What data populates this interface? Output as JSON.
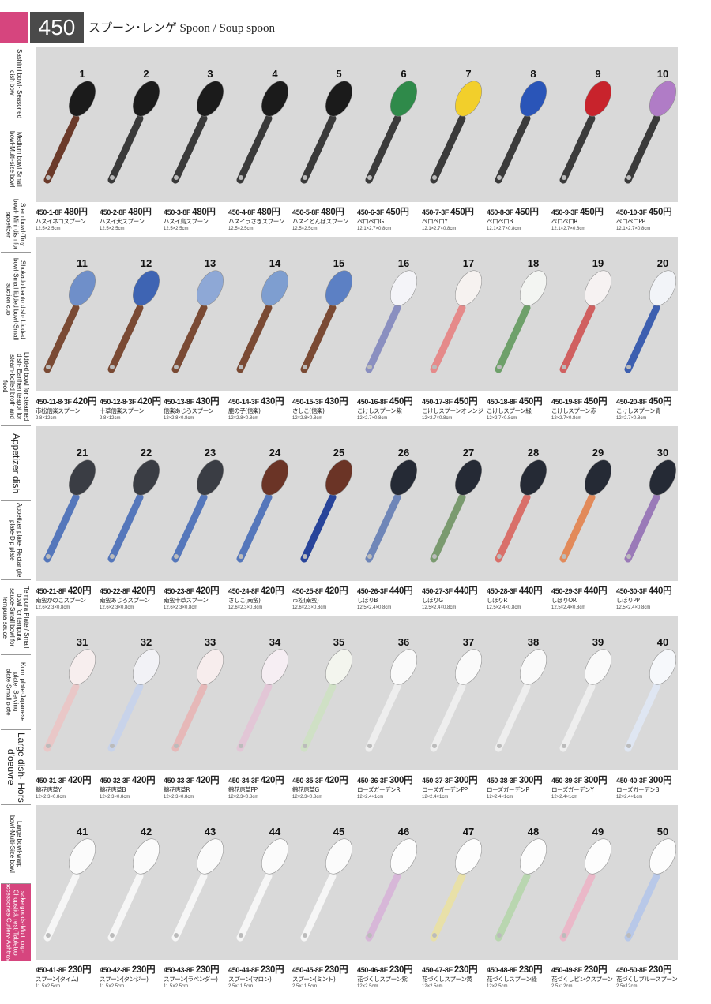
{
  "header": {
    "page_number": "450",
    "title": "スプーン･レンゲ Spoon / Soup spoon"
  },
  "side_tabs": [
    "Sashimi bowl· Seasoned dish bowl",
    "Medium bowl·Small bowl·Multi-size bowl",
    "Stem bowl·Tiny bowl· Mini dish for appetizer",
    "Shokado bento dish· Lidded bowl·Small lidded bowl·Small suction cup",
    "Lidded bowl for steamed dish· Earthen teapot for steam-boiled broth and food",
    "Appetizer dish",
    "Appetizer plate· Rectangle plate·Dip plate",
    "Tempura Plate / Small bowl for tempura sauce·Small bowl for tempura sauce",
    "Kumi plate·Japanese plate· Serving plate·Small plate",
    "Large dish· Hors d'oeuvre",
    "Large bowl·warp bowl·Multi-Size bowl",
    "sake goods·Multi cup· Chopstick rest·Tabletop accessories·Cutlery·Ashtray"
  ],
  "sections": [
    {
      "items": [
        {
          "number": 1,
          "code": "450-1-8F",
          "price": "480円",
          "name": "ハスイネコスプーン",
          "size": "12.5×2.5cm"
        },
        {
          "number": 2,
          "code": "450-2-8F",
          "price": "480円",
          "name": "ハスイ犬スプーン",
          "size": "12.5×2.5cm"
        },
        {
          "number": 3,
          "code": "450-3-8F",
          "price": "480円",
          "name": "ハスイ鳥スプーン",
          "size": "12.5×2.5cm"
        },
        {
          "number": 4,
          "code": "450-4-8F",
          "price": "480円",
          "name": "ハスイうさぎスプーン",
          "size": "12.5×2.5cm"
        },
        {
          "number": 5,
          "code": "450-5-8F",
          "price": "480円",
          "name": "ハスイとんぼスプーン",
          "size": "12.5×2.5cm"
        },
        {
          "number": 6,
          "code": "450-6-3F",
          "price": "450円",
          "name": "ペロペロG",
          "size": "12.1×2.7×0.8cm"
        },
        {
          "number": 7,
          "code": "450-7-3F",
          "price": "450円",
          "name": "ペロペロY",
          "size": "12.1×2.7×0.8cm"
        },
        {
          "number": 8,
          "code": "450-8-3F",
          "price": "450円",
          "name": "ペロペロB",
          "size": "12.1×2.7×0.8cm"
        },
        {
          "number": 9,
          "code": "450-9-3F",
          "price": "450円",
          "name": "ペロペロR",
          "size": "12.1×2.7×0.8cm"
        },
        {
          "number": 10,
          "code": "450-10-3F",
          "price": "450円",
          "name": "ペロペロPP",
          "size": "12.1×2.7×0.8cm"
        }
      ]
    },
    {
      "items": [
        {
          "number": 11,
          "code": "450-11-8·3F",
          "price": "420円",
          "name": "市松信楽スプーン",
          "size": "2.8×12cm"
        },
        {
          "number": 12,
          "code": "450-12-8·3F",
          "price": "420円",
          "name": "十草信楽スプーン",
          "size": "2.8×12cm"
        },
        {
          "number": 13,
          "code": "450-13-8F",
          "price": "430円",
          "name": "信楽あじろスプーン",
          "size": "12×2.8×0.8cm"
        },
        {
          "number": 14,
          "code": "450-14-3F",
          "price": "430円",
          "name": "鹿の子(信楽)",
          "size": "12×2.8×0.8cm"
        },
        {
          "number": 15,
          "code": "450-15-3F",
          "price": "430円",
          "name": "さしこ(信楽)",
          "size": "12×2.8×0.8cm"
        },
        {
          "number": 16,
          "code": "450-16-8F",
          "price": "450円",
          "name": "こけしスプーン紫",
          "size": "12×2.7×0.8cm"
        },
        {
          "number": 17,
          "code": "450-17-8F",
          "price": "450円",
          "name": "こけしスプーンオレンジ",
          "size": "12×2.7×0.8cm"
        },
        {
          "number": 18,
          "code": "450-18-8F",
          "price": "450円",
          "name": "こけしスプーン緑",
          "size": "12×2.7×0.8cm"
        },
        {
          "number": 19,
          "code": "450-19-8F",
          "price": "450円",
          "name": "こけしスプーン赤",
          "size": "12×2.7×0.8cm"
        },
        {
          "number": 20,
          "code": "450-20-8F",
          "price": "450円",
          "name": "こけしスプーン青",
          "size": "12×2.7×0.8cm"
        }
      ]
    },
    {
      "items": [
        {
          "number": 21,
          "code": "450-21-8F",
          "price": "420円",
          "name": "南蛮かのこスプーン",
          "size": "12.6×2.3×0.8cm"
        },
        {
          "number": 22,
          "code": "450-22-8F",
          "price": "420円",
          "name": "南蛮あじろスプーン",
          "size": "12.6×2.3×0.8cm"
        },
        {
          "number": 23,
          "code": "450-23-8F",
          "price": "420円",
          "name": "南蛮十草スプーン",
          "size": "12.6×2.3×0.8cm"
        },
        {
          "number": 24,
          "code": "450-24-8F",
          "price": "420円",
          "name": "さしこ(南蛮)",
          "size": "12.6×2.3×0.8cm"
        },
        {
          "number": 25,
          "code": "450-25-8F",
          "price": "420円",
          "name": "市松(南蛮)",
          "size": "12.6×2.3×0.8cm"
        },
        {
          "number": 26,
          "code": "450-26-3F",
          "price": "440円",
          "name": "しぼりB",
          "size": "12.5×2.4×0.8cm"
        },
        {
          "number": 27,
          "code": "450-27-3F",
          "price": "440円",
          "name": "しぼりG",
          "size": "12.5×2.4×0.8cm"
        },
        {
          "number": 28,
          "code": "450-28-3F",
          "price": "440円",
          "name": "しぼりR",
          "size": "12.5×2.4×0.8cm"
        },
        {
          "number": 29,
          "code": "450-29-3F",
          "price": "440円",
          "name": "しぼりOR",
          "size": "12.5×2.4×0.8cm"
        },
        {
          "number": 30,
          "code": "450-30-3F",
          "price": "440円",
          "name": "しぼりPP",
          "size": "12.5×2.4×0.8cm"
        }
      ]
    },
    {
      "items": [
        {
          "number": 31,
          "code": "450-31-3F",
          "price": "420円",
          "name": "錦花唐草Y",
          "size": "12×2.3×0.8cm"
        },
        {
          "number": 32,
          "code": "450-32-3F",
          "price": "420円",
          "name": "錦花唐草B",
          "size": "12×2.3×0.8cm"
        },
        {
          "number": 33,
          "code": "450-33-3F",
          "price": "420円",
          "name": "錦花唐草R",
          "size": "12×2.3×0.8cm"
        },
        {
          "number": 34,
          "code": "450-34-3F",
          "price": "420円",
          "name": "錦花唐草PP",
          "size": "12×2.3×0.8cm"
        },
        {
          "number": 35,
          "code": "450-35-3F",
          "price": "420円",
          "name": "錦花唐草G",
          "size": "12×2.3×0.8cm"
        },
        {
          "number": 36,
          "code": "450-36-3F",
          "price": "300円",
          "name": "ローズガーデンR",
          "size": "12×2.4×1cm"
        },
        {
          "number": 37,
          "code": "450-37-3F",
          "price": "300円",
          "name": "ローズガーデンPP",
          "size": "12×2.4×1cm"
        },
        {
          "number": 38,
          "code": "450-38-3F",
          "price": "300円",
          "name": "ローズガーデンP",
          "size": "12×2.4×1cm"
        },
        {
          "number": 39,
          "code": "450-39-3F",
          "price": "300円",
          "name": "ローズガーデンY",
          "size": "12×2.4×1cm"
        },
        {
          "number": 40,
          "code": "450-40-3F",
          "price": "300円",
          "name": "ローズガーデンB",
          "size": "12×2.4×1cm"
        }
      ]
    },
    {
      "items": [
        {
          "number": 41,
          "code": "450-41-8F",
          "price": "230円",
          "name": "スプーン(タイム)",
          "size": "11.5×2.5cm"
        },
        {
          "number": 42,
          "code": "450-42-8F",
          "price": "230円",
          "name": "スプーン(タンジー)",
          "size": "11.5×2.5cm"
        },
        {
          "number": 43,
          "code": "450-43-8F",
          "price": "230円",
          "name": "スプーン(ラベンダー)",
          "size": "11.5×2.5cm"
        },
        {
          "number": 44,
          "code": "450-44-8F",
          "price": "230円",
          "name": "スプーン(マロン)",
          "size": "2.5×11.5cm"
        },
        {
          "number": 45,
          "code": "450-45-8F",
          "price": "230円",
          "name": "スプーン(ミント)",
          "size": "2.5×11.5cm"
        },
        {
          "number": 46,
          "code": "450-46-8F",
          "price": "230円",
          "name": "花づくしスプーン紫",
          "size": "12×2.5cm"
        },
        {
          "number": 47,
          "code": "450-47-8F",
          "price": "230円",
          "name": "花づくしスプーン黄",
          "size": "12×2.5cm"
        },
        {
          "number": 48,
          "code": "450-48-8F",
          "price": "230円",
          "name": "花づくしスプーン緑",
          "size": "12×2.5cm"
        },
        {
          "number": 49,
          "code": "450-49-8F",
          "price": "230円",
          "name": "花づくしピンクスプーン",
          "size": "2.5×12cm"
        },
        {
          "number": 50,
          "code": "450-50-8F",
          "price": "230円",
          "name": "花づくしブルースプーン",
          "size": "2.5×12cm"
        }
      ]
    }
  ]
}
